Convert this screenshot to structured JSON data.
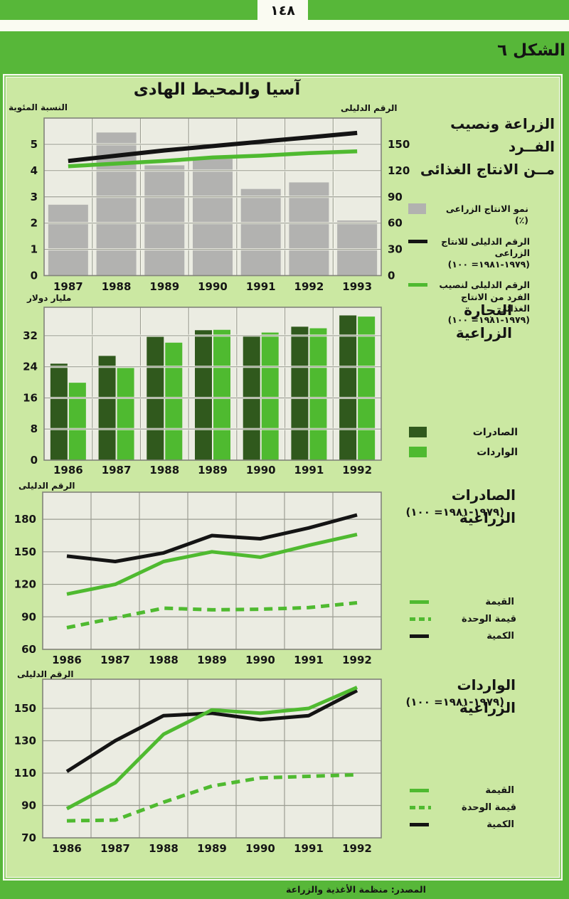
{
  "page": {
    "number": "١٤٨",
    "figure_label": "الشكل ٦",
    "panel_title": "آسيا والمحيط الهادى",
    "source": "المصدر: منظمة الأغذية والزراعة"
  },
  "colors": {
    "page_green": "#57b739",
    "panel_green": "#cbe8a2",
    "plot_bg": "#ebece2",
    "grid_grey": "#9b9d92",
    "grid_white": "#f7f8ee",
    "border_grey": "#82847a",
    "grey_bar": "#b2b2b0",
    "dark_green": "#30591d",
    "light_green": "#4fba30",
    "black": "#141414",
    "paper": "#fafbf2"
  },
  "chart_data": [
    {
      "type": "bar+line",
      "side_title": "الزراعة ونصيب الفــرد\nمــن الانتاج الغذائى",
      "left_axis_label": "النسبة المئوية",
      "right_axis_label": "الرقم الدليلى",
      "categories": [
        "1987",
        "1988",
        "1989",
        "1990",
        "1991",
        "1992",
        "1993"
      ],
      "left_ticks": [
        0,
        1,
        2,
        3,
        4,
        5
      ],
      "right_ticks": [
        0,
        30,
        60,
        90,
        120,
        150
      ],
      "left_ylim": [
        0,
        6
      ],
      "right_ylim": [
        0,
        180
      ],
      "bars": {
        "name": "نمو الانتاج الزراعى (٪)",
        "color": "grey_bar",
        "values": [
          2.7,
          5.45,
          4.2,
          4.45,
          3.3,
          3.55,
          2.1
        ]
      },
      "lines": [
        {
          "name": "الرقم الدليلى للانتاج الزراعى (١٩٧٩-١٩٨١= ١٠٠)",
          "color": "black",
          "axis": "right",
          "values": [
            131,
            137,
            143,
            148,
            153,
            158,
            163
          ]
        },
        {
          "name": "الرقم الدليلى لنصيب الفرد من الانتاج الغذائي (١٩٧٩-١٩٨١= ١٠٠)",
          "color": "light_green",
          "axis": "right",
          "values": [
            125,
            128,
            131,
            135,
            137,
            140,
            142
          ]
        }
      ],
      "legend": [
        {
          "swatch": "grey-bar-swatch",
          "label": "نمو الانتاج الزراعى (٪)"
        },
        {
          "swatch": "black-line-swatch",
          "label": "الرقم الدليلى للانتاج الزراعى\n(١٩٧٩-١٩٨١= ١٠٠)"
        },
        {
          "swatch": "green-line-swatch",
          "label": "الرقم الدليلى لنصيب\nالفرد من الانتاج الغذائي\n(١٩٧٩-١٩٨١= ١٠٠)"
        }
      ]
    },
    {
      "type": "grouped_bar",
      "side_title": "التجارة الزراعية",
      "axis_label": "مليار دولار",
      "categories": [
        "1986",
        "1987",
        "1988",
        "1989",
        "1990",
        "1991",
        "1992"
      ],
      "yticks": [
        0,
        8,
        16,
        24,
        32
      ],
      "ylim": [
        0,
        39.3
      ],
      "series": [
        {
          "name": "الصادرات",
          "color": "dark_green",
          "values": [
            24.8,
            26.8,
            31.7,
            33.4,
            32.0,
            34.3,
            37.2
          ]
        },
        {
          "name": "الواردات",
          "color": "light_green",
          "values": [
            19.9,
            23.7,
            30.2,
            33.5,
            32.8,
            33.9,
            36.9
          ]
        }
      ],
      "legend": [
        {
          "swatch": "dark-green-box-swatch",
          "label": "الصادرات"
        },
        {
          "swatch": "light-green-box-swatch",
          "label": "الواردات"
        }
      ]
    },
    {
      "type": "line",
      "side_title": "الصادرات الزراعية",
      "subtitle": "(١٩٧٩-١٩٨١= ١٠٠)",
      "axis_label": "الرقم الدليلى",
      "categories": [
        "1986",
        "1987",
        "1988",
        "1989",
        "1990",
        "1991",
        "1992"
      ],
      "yticks": [
        60,
        90,
        120,
        150,
        180
      ],
      "ylim": [
        60,
        205
      ],
      "series": [
        {
          "name": "القيمة",
          "color": "light_green",
          "style": "solid",
          "values": [
            111,
            120,
            141,
            150,
            145,
            156,
            166
          ]
        },
        {
          "name": "قيمة الوحدة",
          "color": "light_green",
          "style": "dashed",
          "values": [
            80,
            89,
            98,
            96.5,
            97,
            98.5,
            103
          ]
        },
        {
          "name": "الكمية",
          "color": "black",
          "style": "solid",
          "values": [
            146,
            141,
            149,
            165,
            162,
            172,
            184
          ]
        }
      ],
      "legend": [
        {
          "swatch": "green-line-swatch",
          "label": "القيمة"
        },
        {
          "swatch": "green-dash-swatch",
          "label": "قيمة الوحدة"
        },
        {
          "swatch": "black-line-swatch",
          "label": "الكمية"
        }
      ]
    },
    {
      "type": "line",
      "side_title": "الواردات الزراعية",
      "subtitle": "(١٩٧٩-١٩٨١= ١٠٠)",
      "axis_label": "الرقم الدليلى",
      "categories": [
        "1986",
        "1987",
        "1988",
        "1989",
        "1990",
        "1991",
        "1992"
      ],
      "yticks": [
        70,
        90,
        110,
        130,
        150
      ],
      "ylim": [
        70,
        168
      ],
      "series": [
        {
          "name": "القيمة",
          "color": "light_green",
          "style": "solid",
          "values": [
            88,
            104,
            134,
            149,
            147,
            150,
            163
          ]
        },
        {
          "name": "قيمة الوحدة",
          "color": "light_green",
          "style": "dashed",
          "values": [
            80.5,
            81,
            92,
            102,
            107,
            108,
            109
          ]
        },
        {
          "name": "الكمية",
          "color": "black",
          "style": "solid",
          "values": [
            111,
            130,
            145.5,
            147,
            143,
            145.5,
            161
          ]
        }
      ],
      "legend": [
        {
          "swatch": "green-line-swatch",
          "label": "القيمة"
        },
        {
          "swatch": "green-dash-swatch",
          "label": "قيمة الوحدة"
        },
        {
          "swatch": "black-line-swatch",
          "label": "الكمية"
        }
      ]
    }
  ]
}
